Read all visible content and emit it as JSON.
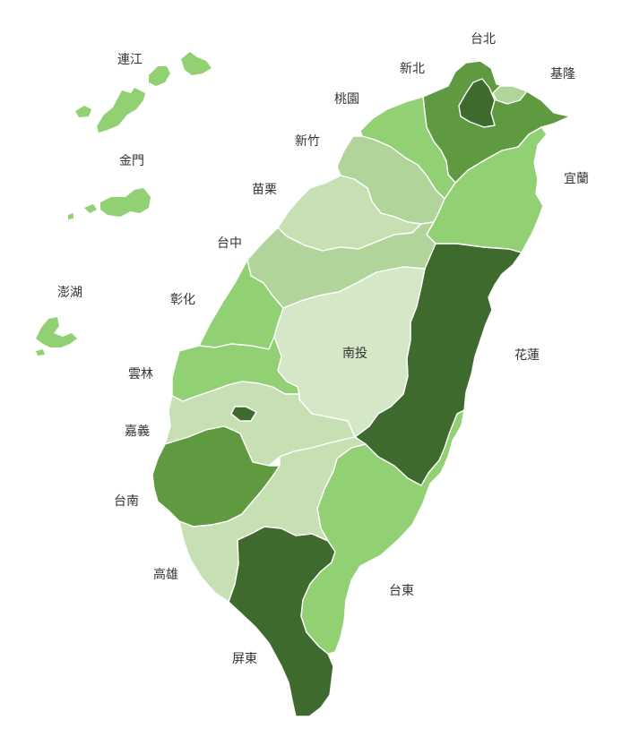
{
  "palette": {
    "darkest": "#3f6a2e",
    "dark": "#5f9a40",
    "medium": "#92d074",
    "light": "#b0d49a",
    "lighter": "#c6e0b4",
    "lightest": "#d4e8c8",
    "border": "#ffffff",
    "label": "#333333"
  },
  "counties": {
    "taipei": "台北",
    "new_taipei": "新北",
    "keelung": "基隆",
    "taoyuan": "桃園",
    "hsinchu": "新竹",
    "yilan": "宜蘭",
    "miaoli": "苗栗",
    "taichung": "台中",
    "changhua": "彰化",
    "nantou": "南投",
    "hualien": "花蓮",
    "yunlin": "雲林",
    "chiayi": "嘉義",
    "tainan": "台南",
    "kaohsiung": "高雄",
    "taitung": "台東",
    "pingtung": "屏東",
    "penghu": "澎湖",
    "kinmen": "金門",
    "lienchiang": "連江"
  }
}
